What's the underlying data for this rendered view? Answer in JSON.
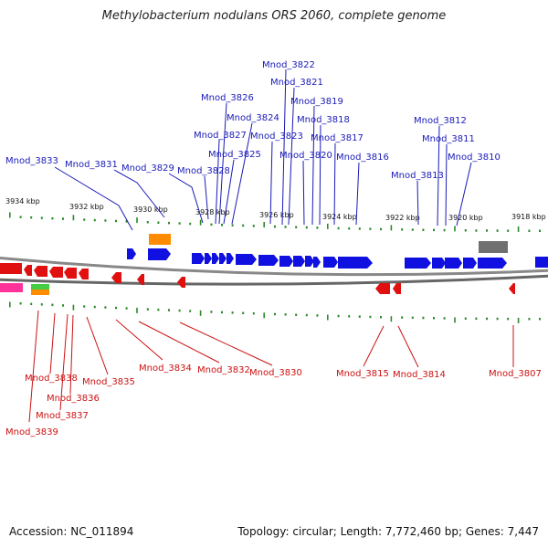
{
  "title": "Methylobacterium nodulans ORS 2060, complete genome",
  "accession": "Accession: NC_011894",
  "summary": "Topology: circular; Length: 7,772,460 bp; Genes: 7,447",
  "colors": {
    "forward_gene": "#1010e0",
    "reverse_gene": "#e01010",
    "forward_label": "#1a1ab8",
    "reverse_label": "#cc1111",
    "tick": "#2a8a2a",
    "backbone": "#888888",
    "orange_feature": "#ff8c00",
    "gray_feature": "#707070",
    "green_feature": "#44cc44",
    "magenta_feature": "#ff3399"
  },
  "scale_labels": [
    "3934 kbp",
    "3932 kbp",
    "3930 kbp",
    "3928 kbp",
    "3926 kbp",
    "3924 kbp",
    "3922 kbp",
    "3920 kbp",
    "3918 kbp"
  ],
  "forward_labels": [
    "Mnod_3833",
    "Mnod_3831",
    "Mnod_3829",
    "Mnod_3828",
    "Mnod_3827",
    "Mnod_3826",
    "Mnod_3825",
    "Mnod_3824",
    "Mnod_3823",
    "Mnod_3822",
    "Mnod_3821",
    "Mnod_3820",
    "Mnod_3819",
    "Mnod_3818",
    "Mnod_3817",
    "Mnod_3816",
    "Mnod_3813",
    "Mnod_3812",
    "Mnod_3811",
    "Mnod_3810"
  ],
  "reverse_labels": [
    "Mnod_3839",
    "Mnod_3838",
    "Mnod_3837",
    "Mnod_3836",
    "Mnod_3835",
    "Mnod_3834",
    "Mnod_3832",
    "Mnod_3830",
    "Mnod_3815",
    "Mnod_3814",
    "Mnod_3807"
  ]
}
